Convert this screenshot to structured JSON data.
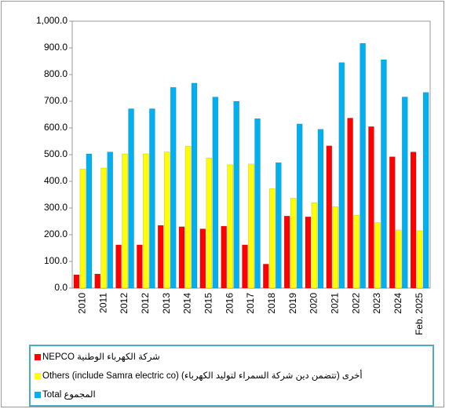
{
  "chart_data": {
    "type": "bar",
    "categories": [
      "2010",
      "2011",
      "2012",
      "2012",
      "2013",
      "2014",
      "2015",
      "2016",
      "2017",
      "2018",
      "2019",
      "2020",
      "2021",
      "2022",
      "2023",
      "2024",
      "Feb. 2025"
    ],
    "series": [
      {
        "name": "NEPCO شركة الكهرباء الوطنية",
        "color": "#ff0000",
        "values": [
          50,
          53,
          162,
          162,
          235,
          230,
          222,
          232,
          162,
          90,
          270,
          267,
          533,
          637,
          605,
          492,
          510
        ]
      },
      {
        "name": "Others (include Samra electric co) أخرى (تتضمن دين شركة السمراء لتوليد الكهرباء)",
        "color": "#ffff00",
        "values": [
          446,
          450,
          503,
          503,
          510,
          532,
          488,
          462,
          465,
          373,
          337,
          320,
          305,
          273,
          245,
          218,
          215
        ]
      },
      {
        "name": "Total المجموع",
        "color": "#00b0f0",
        "values": [
          503,
          510,
          672,
          672,
          752,
          768,
          716,
          700,
          635,
          470,
          615,
          595,
          845,
          917,
          856,
          716,
          733
        ]
      }
    ],
    "ylim": [
      0,
      1000
    ],
    "yticks": [
      {
        "value": 0,
        "label": "0.0"
      },
      {
        "value": 100,
        "label": "100.0"
      },
      {
        "value": 200,
        "label": "200.0"
      },
      {
        "value": 300,
        "label": "300.0"
      },
      {
        "value": 400,
        "label": "400.0"
      },
      {
        "value": 500,
        "label": "500.0"
      },
      {
        "value": 600,
        "label": "600.0"
      },
      {
        "value": 700,
        "label": "700.0"
      },
      {
        "value": 800,
        "label": "800.0"
      },
      {
        "value": 900,
        "label": "900.0"
      },
      {
        "value": 1000,
        "label": "1,000.0"
      }
    ]
  }
}
